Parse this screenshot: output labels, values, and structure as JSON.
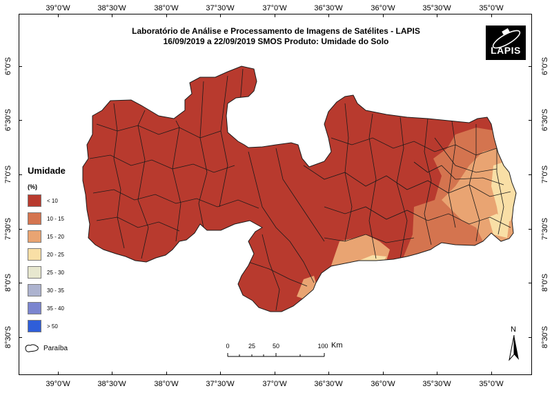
{
  "header": {
    "title": "Laboratório de Análise e Processamento de Imagens de Satélites - LAPIS",
    "subtitle": "16/09/2019  a  22/09/2019          SMOS       Produto: Umidade do Solo"
  },
  "logo": {
    "text": "LAPIS"
  },
  "axes": {
    "longitude_labels": [
      "39°0'W",
      "38°30'W",
      "38°0'W",
      "37°30'W",
      "37°0'W",
      "36°30'W",
      "36°0'W",
      "35°30'W",
      "35°0'W"
    ],
    "latitude_labels": [
      "6°0'S",
      "6°30'S",
      "7°0'S",
      "7°30'S",
      "8°0'S",
      "8°30'S"
    ]
  },
  "legend": {
    "title": "Umidade",
    "unit": "(%)",
    "items": [
      {
        "label": "< 10",
        "color": "#b83a2e"
      },
      {
        "label": "10 - 15",
        "color": "#d4744f"
      },
      {
        "label": "15 - 20",
        "color": "#e9a472"
      },
      {
        "label": "20 - 25",
        "color": "#f9dfa6"
      },
      {
        "label": "25 - 30",
        "color": "#e7e7cf"
      },
      {
        "label": "30 - 35",
        "color": "#adb3cf"
      },
      {
        "label": "35 - 40",
        "color": "#7b85cf"
      },
      {
        "label": "> 50",
        "color": "#2f5ed9"
      }
    ],
    "outline_label": "Paraíba"
  },
  "scale_bar": {
    "labels": [
      "0",
      "25",
      "50",
      "100"
    ],
    "unit": "Km"
  },
  "north_arrow": {
    "label": "N"
  },
  "map_colors": {
    "dry": "#b83a2e",
    "moist": "#d4744f",
    "wet": "#e9a472",
    "wettest": "#f9dfa6",
    "border": "#1a1a1a"
  }
}
